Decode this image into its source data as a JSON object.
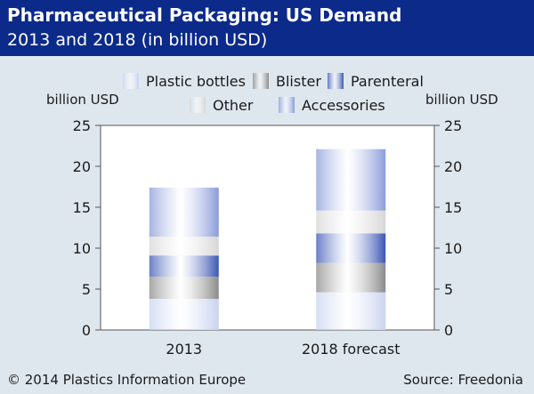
{
  "header": {
    "title": "Pharmaceutical Packaging: US Demand",
    "subtitle": "2013 and 2018 (in billion USD)"
  },
  "footer": {
    "copyright": "© 2014 Plastics Information Europe",
    "source": "Source: Freedonia"
  },
  "colors": {
    "header_bg": "#0b2a8a",
    "page_bg": "#dfe7ee",
    "plot_bg": "#ffffff"
  },
  "chart_data": {
    "type": "bar",
    "stacked": true,
    "categories": [
      "2013",
      "2018 forecast"
    ],
    "series": [
      {
        "name": "Plastic bottles",
        "values": [
          3.8,
          4.6
        ],
        "color": "#c9d3f0"
      },
      {
        "name": "Blister",
        "values": [
          2.7,
          3.6
        ],
        "color": "#8a8a8a"
      },
      {
        "name": "Parenteral",
        "values": [
          2.6,
          3.6
        ],
        "color": "#3a55b5"
      },
      {
        "name": "Other",
        "values": [
          2.3,
          2.8
        ],
        "color": "#d6d6d6"
      },
      {
        "name": "Accessories",
        "values": [
          6.0,
          7.5
        ],
        "color": "#8a9bd9"
      }
    ],
    "ylabel_left": "billion USD",
    "ylabel_right": "billion USD",
    "ylim": [
      0,
      25
    ],
    "yticks": [
      "0",
      "5",
      "10",
      "15",
      "20",
      "25"
    ],
    "legend_position": "top",
    "grid": false
  }
}
